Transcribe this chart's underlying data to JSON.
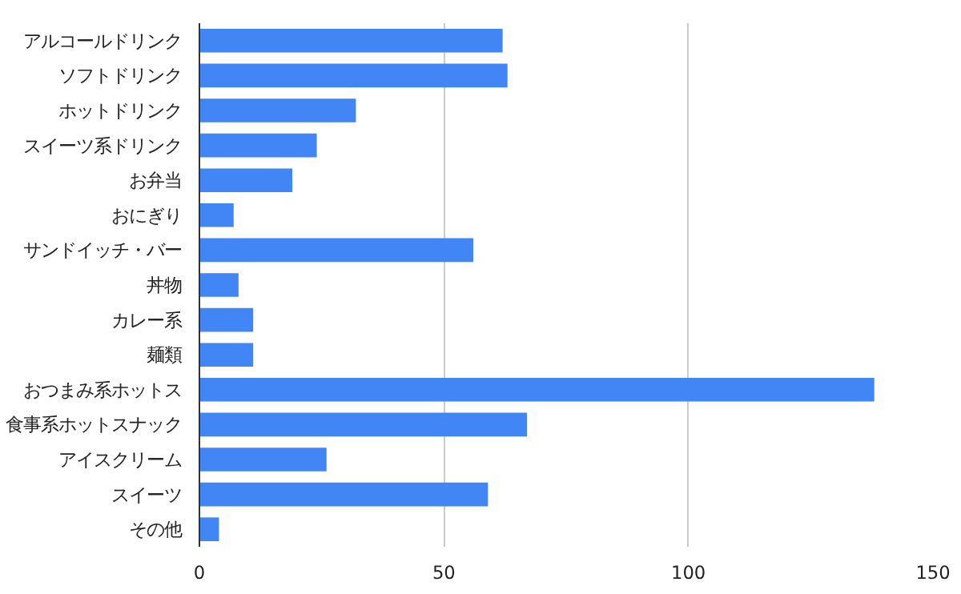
{
  "chart_data": {
    "type": "bar",
    "orientation": "horizontal",
    "categories": [
      "アルコールドリンク",
      "ソフトドリンク",
      "ホットドリンク",
      "スイーツ系ドリンク",
      "お弁当",
      "おにぎり",
      "サンドイッチ・バー",
      "丼物",
      "カレー系",
      "麺類",
      "おつまみ系ホットス",
      "食事系ホットスナック",
      "アイスクリーム",
      "スイーツ",
      "その他"
    ],
    "values": [
      62,
      63,
      32,
      24,
      19,
      7,
      56,
      8,
      11,
      11,
      138,
      67,
      26,
      59,
      4
    ],
    "color": "#4285f4",
    "xlim": [
      0,
      150
    ],
    "xticks": [
      0,
      50,
      100,
      150
    ],
    "grid": "x"
  }
}
